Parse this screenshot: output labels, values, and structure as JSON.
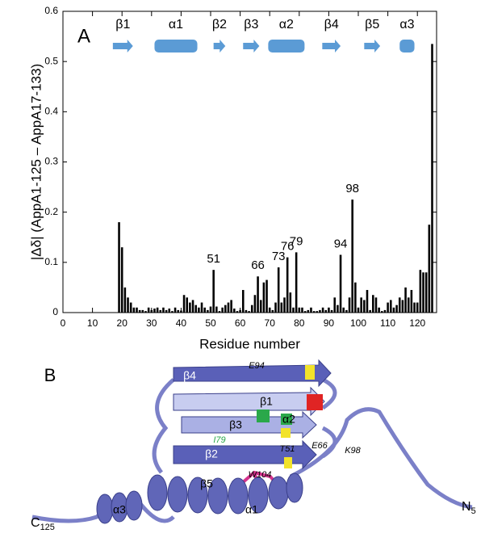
{
  "chart_data": {
    "type": "bar",
    "panel_label": "A",
    "xlabel": "Residue number",
    "ylabel": "|Δδ| (AppA1-125 – AppA17-133)",
    "color": "#000000",
    "xlim": [
      0,
      126.5
    ],
    "xticks": [
      0,
      10,
      20,
      30,
      40,
      50,
      60,
      70,
      80,
      90,
      100,
      110,
      120
    ],
    "ylim": [
      0,
      0.6
    ],
    "yticks": [
      0,
      0.1,
      0.2,
      0.3,
      0.4,
      0.5,
      0.6
    ],
    "x": [
      19,
      20,
      21,
      22,
      23,
      24,
      25,
      26,
      27,
      28,
      29,
      30,
      31,
      32,
      33,
      34,
      35,
      36,
      37,
      38,
      39,
      40,
      41,
      42,
      43,
      44,
      45,
      46,
      47,
      48,
      49,
      50,
      51,
      52,
      53,
      54,
      55,
      56,
      57,
      58,
      59,
      60,
      61,
      62,
      63,
      64,
      65,
      66,
      67,
      68,
      69,
      70,
      71,
      72,
      73,
      74,
      75,
      76,
      77,
      78,
      79,
      80,
      81,
      82,
      83,
      84,
      85,
      86,
      87,
      88,
      89,
      90,
      91,
      92,
      93,
      94,
      95,
      96,
      97,
      98,
      99,
      100,
      101,
      102,
      103,
      104,
      105,
      106,
      107,
      108,
      109,
      110,
      111,
      112,
      113,
      114,
      115,
      116,
      117,
      118,
      119,
      120,
      121,
      122,
      123,
      124,
      125
    ],
    "values": [
      0.18,
      0.13,
      0.05,
      0.03,
      0.02,
      0.01,
      0.01,
      0.005,
      0.005,
      0.003,
      0.01,
      0.005,
      0.008,
      0.01,
      0.005,
      0.01,
      0.005,
      0.008,
      0.003,
      0.01,
      0.005,
      0.004,
      0.035,
      0.03,
      0.02,
      0.025,
      0.015,
      0.01,
      0.02,
      0.01,
      0.005,
      0.012,
      0.085,
      0.012,
      0.003,
      0.01,
      0.015,
      0.02,
      0.025,
      0.008,
      0.003,
      0.005,
      0.045,
      0.005,
      0.003,
      0.015,
      0.035,
      0.072,
      0.025,
      0.06,
      0.065,
      0.01,
      0.005,
      0.02,
      0.09,
      0.02,
      0.03,
      0.11,
      0.04,
      0.01,
      0.12,
      0.01,
      0.01,
      0.003,
      0.005,
      0.01,
      0.003,
      0.003,
      0.005,
      0.01,
      0.005,
      0.01,
      0.005,
      0.03,
      0.015,
      0.115,
      0.01,
      0.005,
      0.03,
      0.225,
      0.06,
      0.01,
      0.03,
      0.025,
      0.045,
      0.005,
      0.035,
      0.03,
      0.01,
      0.003,
      0.005,
      0.02,
      0.025,
      0.01,
      0.015,
      0.03,
      0.025,
      0.05,
      0.03,
      0.045,
      0.02,
      0.02,
      0.085,
      0.08,
      0.08,
      0.175,
      0.535
    ],
    "annotations": [
      51,
      66,
      73,
      76,
      79,
      94,
      98
    ],
    "secondary_structure": [
      {
        "label": "β1",
        "kind": "strand",
        "start": 16.9,
        "end": 23.7
      },
      {
        "label": "α1",
        "kind": "helix",
        "start": 31,
        "end": 45.5
      },
      {
        "label": "β2",
        "kind": "strand",
        "start": 51,
        "end": 55
      },
      {
        "label": "β3",
        "kind": "strand",
        "start": 61,
        "end": 66.5
      },
      {
        "label": "α2",
        "kind": "helix",
        "start": 69.5,
        "end": 81.8
      },
      {
        "label": "β4",
        "kind": "strand",
        "start": 87.8,
        "end": 94
      },
      {
        "label": "β5",
        "kind": "strand",
        "start": 102,
        "end": 107.4
      },
      {
        "label": "α3",
        "kind": "helix",
        "start": 114,
        "end": 119
      }
    ],
    "ss_color": "#5b9bd5"
  },
  "structure": {
    "panel_label": "B",
    "labels": [
      {
        "text": "β4"
      },
      {
        "text": "E94"
      },
      {
        "text": "β1"
      },
      {
        "text": "α2"
      },
      {
        "text": "β3"
      },
      {
        "text": "I79"
      },
      {
        "text": "T51"
      },
      {
        "text": "E66"
      },
      {
        "text": "K98"
      },
      {
        "text": "β2"
      },
      {
        "text": "W104"
      },
      {
        "text": "β5"
      },
      {
        "text": "α1"
      },
      {
        "text": "α3"
      }
    ],
    "c_term": {
      "text": "C",
      "sub": "125"
    },
    "n_term": {
      "text": "N",
      "sub": "5"
    }
  }
}
